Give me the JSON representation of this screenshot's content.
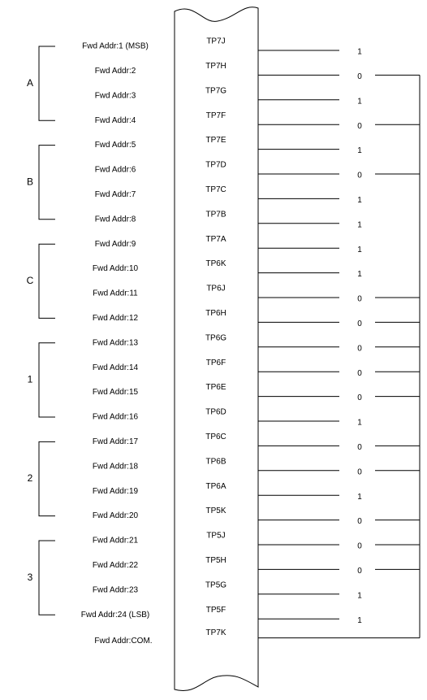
{
  "groups": [
    {
      "label": "A",
      "rows": [
        {
          "address": "Fwd Addr:1 (MSB)",
          "pin": "TP7J",
          "bit": 1
        },
        {
          "address": "Fwd Addr:2",
          "pin": "TP7H",
          "bit": 0
        },
        {
          "address": "Fwd Addr:3",
          "pin": "TP7G",
          "bit": 1
        },
        {
          "address": "Fwd Addr:4",
          "pin": "TP7F",
          "bit": 0
        }
      ]
    },
    {
      "label": "B",
      "rows": [
        {
          "address": "Fwd Addr:5",
          "pin": "TP7E",
          "bit": 1
        },
        {
          "address": "Fwd Addr:6",
          "pin": "TP7D",
          "bit": 0
        },
        {
          "address": "Fwd Addr:7",
          "pin": "TP7C",
          "bit": 1
        },
        {
          "address": "Fwd Addr:8",
          "pin": "TP7B",
          "bit": 1
        }
      ]
    },
    {
      "label": "C",
      "rows": [
        {
          "address": "Fwd Addr:9",
          "pin": "TP7A",
          "bit": 1
        },
        {
          "address": "Fwd Addr:10",
          "pin": "TP6K",
          "bit": 1
        },
        {
          "address": "Fwd Addr:11",
          "pin": "TP6J",
          "bit": 0
        },
        {
          "address": "Fwd Addr:12",
          "pin": "TP6H",
          "bit": 0
        }
      ]
    },
    {
      "label": "1",
      "rows": [
        {
          "address": "Fwd Addr:13",
          "pin": "TP6G",
          "bit": 0
        },
        {
          "address": "Fwd Addr:14",
          "pin": "TP6F",
          "bit": 0
        },
        {
          "address": "Fwd Addr:15",
          "pin": "TP6E",
          "bit": 0
        },
        {
          "address": "Fwd Addr:16",
          "pin": "TP6D",
          "bit": 1
        }
      ]
    },
    {
      "label": "2",
      "rows": [
        {
          "address": "Fwd Addr:17",
          "pin": "TP6C",
          "bit": 0
        },
        {
          "address": "Fwd Addr:18",
          "pin": "TP6B",
          "bit": 0
        },
        {
          "address": "Fwd Addr:19",
          "pin": "TP6A",
          "bit": 1
        },
        {
          "address": "Fwd Addr:20",
          "pin": "TP5K",
          "bit": 0
        }
      ]
    },
    {
      "label": "3",
      "rows": [
        {
          "address": "Fwd Addr:21",
          "pin": "TP5J",
          "bit": 0
        },
        {
          "address": "Fwd Addr:22",
          "pin": "TP5H",
          "bit": 0
        },
        {
          "address": "Fwd Addr:23",
          "pin": "TP5G",
          "bit": 1
        },
        {
          "address": "Fwd Addr:24 (LSB)",
          "pin": "TP5F",
          "bit": 1
        }
      ]
    }
  ],
  "common": {
    "address": "Fwd Addr:COM.",
    "pin": "TP7K"
  }
}
